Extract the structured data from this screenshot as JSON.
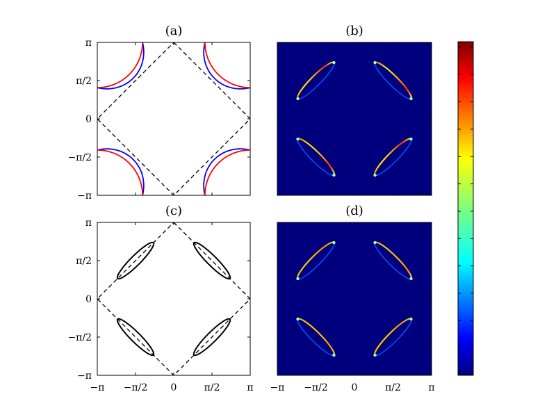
{
  "chart_data": {
    "type": "figure-grid",
    "x_range": [
      -3.14159,
      3.14159
    ],
    "y_range": [
      -3.14159,
      3.14159
    ],
    "tick_values": [
      -3.14159,
      -1.5708,
      0,
      1.5708,
      3.14159
    ],
    "tick_labels": [
      "−π",
      "−π/2",
      "0",
      "π/2",
      "π"
    ],
    "panels": [
      {
        "title": "(a)",
        "kind": "curves",
        "zone_boundary": true,
        "curves": [
          {
            "color": "#0000ff",
            "shape": "hyperbola",
            "cx": 3.14159,
            "cy": 3.14159,
            "r": 1.86,
            "bend": 0.12,
            "corners": "all"
          },
          {
            "color": "#ff0000",
            "shape": "circle",
            "cx": 3.14159,
            "cy": 3.14159,
            "r": 1.86,
            "corners": "all"
          }
        ]
      },
      {
        "title": "(b)",
        "kind": "heatmap",
        "background": "#00007f",
        "pockets": "outer-red",
        "colormap": "jet",
        "grid": false
      },
      {
        "title": "(c)",
        "kind": "curves",
        "zone_boundary": true,
        "curves": [
          {
            "color": "#000000",
            "shape": "pocket",
            "centers": [
              [
                1.5708,
                1.5708
              ],
              [
                -1.5708,
                1.5708
              ],
              [
                1.5708,
                -1.5708
              ],
              [
                -1.5708,
                -1.5708
              ]
            ],
            "long_half": 1.04,
            "short_half": 0.2
          }
        ]
      },
      {
        "title": "(d)",
        "kind": "heatmap",
        "background": "#00007f",
        "pockets": "outer-orange",
        "colormap": "jet",
        "grid": false
      }
    ],
    "colorbar": {
      "colormap": "jet",
      "tick_count": 12,
      "labels": []
    }
  }
}
